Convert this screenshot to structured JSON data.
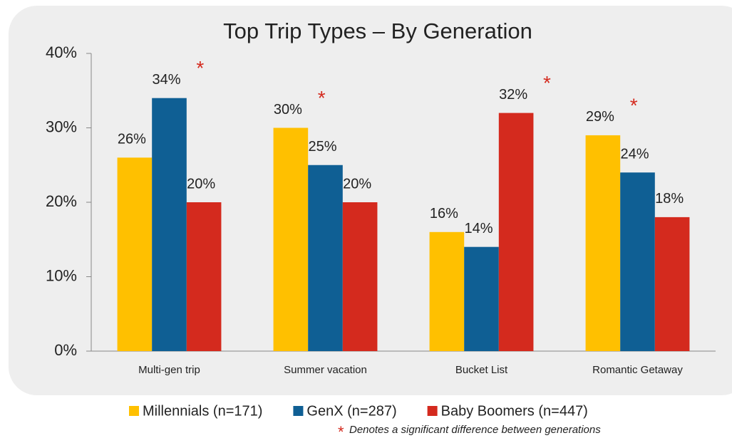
{
  "chart_data": {
    "type": "bar",
    "title": "Top Trip Types – By Generation",
    "categories": [
      "Multi-gen trip",
      "Summer vacation",
      "Bucket List",
      "Romantic Getaway"
    ],
    "series": [
      {
        "name": "Millennials (n=171)",
        "color": "#ffc000",
        "values": [
          26,
          30,
          16,
          29
        ],
        "value_labels": [
          "26%",
          "30%",
          "16%",
          "29%"
        ],
        "significant": [
          false,
          true,
          false,
          true
        ]
      },
      {
        "name": "GenX (n=287)",
        "color": "#0f5f94",
        "values": [
          34,
          25,
          14,
          24
        ],
        "value_labels": [
          "34%",
          "25%",
          "14%",
          "24%"
        ],
        "significant": [
          true,
          false,
          false,
          false
        ]
      },
      {
        "name": "Baby Boomers (n=447)",
        "color": "#d42a1e",
        "values": [
          20,
          20,
          32,
          18
        ],
        "value_labels": [
          "20%",
          "20%",
          "32%",
          "18%"
        ],
        "significant": [
          false,
          false,
          true,
          false
        ]
      }
    ],
    "ylim": [
      0,
      40
    ],
    "yticks": [
      {
        "value": 0,
        "label": "0%"
      },
      {
        "value": 10,
        "label": "10%"
      },
      {
        "value": 20,
        "label": "20%"
      },
      {
        "value": 30,
        "label": "30%"
      },
      {
        "value": 40,
        "label": "40%"
      }
    ],
    "grid": false,
    "marker": "*",
    "footnote": "Denotes a significant difference between generations"
  }
}
